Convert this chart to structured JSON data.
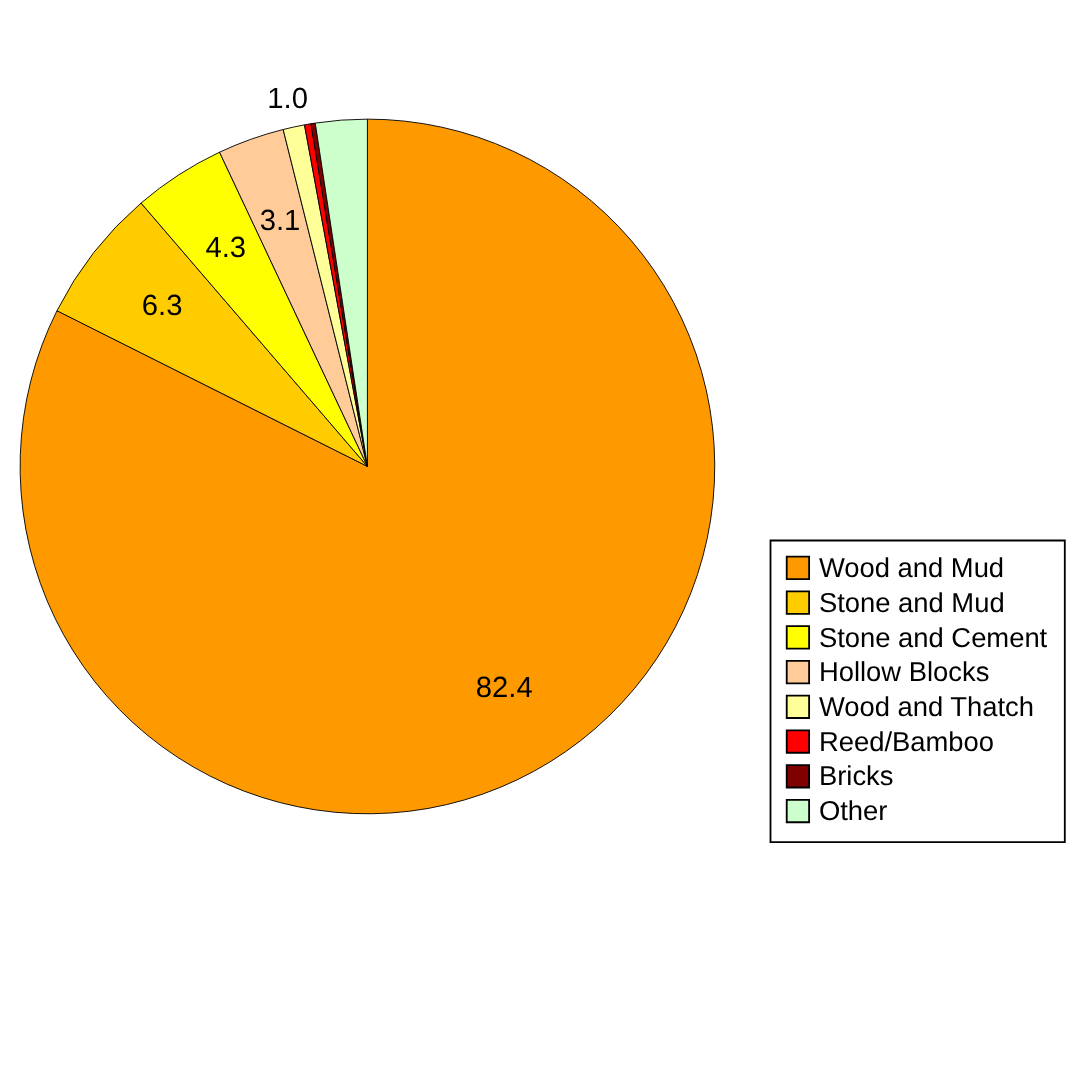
{
  "chart_data": {
    "type": "pie",
    "categories": [
      "Wood and Mud",
      "Stone and Mud",
      "Stone and Cement",
      "Hollow Blocks",
      "Wood and Thatch",
      "Reed/Bamboo",
      "Bricks",
      "Other"
    ],
    "values": [
      82.4,
      6.3,
      4.3,
      3.1,
      1.0,
      0.3,
      0.2,
      2.4
    ],
    "colors": [
      "#ff9900",
      "#ffcc00",
      "#ffff00",
      "#ffcc99",
      "#ffff99",
      "#ff0000",
      "#800000",
      "#ccffcc"
    ],
    "value_labels": [
      "82.4",
      "6.3",
      "4.3",
      "3.1",
      "1.0",
      null,
      null,
      null
    ],
    "legend": "bottom right"
  }
}
